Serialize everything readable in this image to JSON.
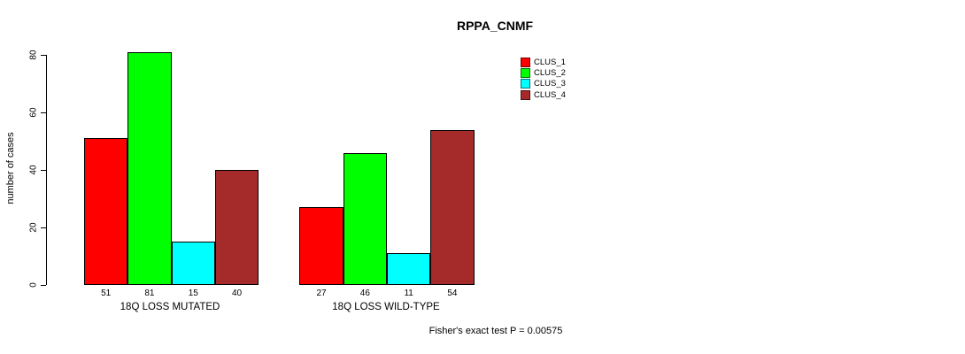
{
  "chart_data": {
    "type": "bar",
    "title": "RPPA_CNMF",
    "ylabel": "number of cases",
    "categories": [
      "18Q LOSS MUTATED",
      "18Q LOSS WILD-TYPE"
    ],
    "series": [
      {
        "name": "CLUS_1",
        "color": "#FF0000",
        "values": [
          51,
          27
        ]
      },
      {
        "name": "CLUS_2",
        "color": "#00FF00",
        "values": [
          81,
          46
        ]
      },
      {
        "name": "CLUS_3",
        "color": "#00FFFF",
        "values": [
          15,
          11
        ]
      },
      {
        "name": "CLUS_4",
        "color": "#A52A2A",
        "values": [
          40,
          54
        ]
      }
    ],
    "ylim": [
      0,
      80
    ],
    "yticks": [
      0,
      20,
      40,
      60,
      80
    ],
    "bar_value_labels_shown": true,
    "grid": false,
    "legend_position": "top-right",
    "annotation": "Fisher's exact test P = 0.00575"
  }
}
